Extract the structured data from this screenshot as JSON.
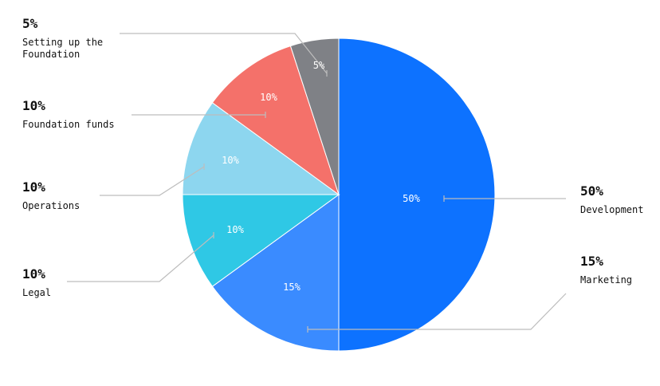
{
  "chart_data": {
    "type": "pie",
    "start_angle_deg": 0,
    "direction": "clockwise",
    "slices": [
      {
        "key": "development",
        "label": "Development",
        "value": 50,
        "value_text": "50%",
        "color": "#0d72ff"
      },
      {
        "key": "marketing",
        "label": "Marketing",
        "value": 15,
        "value_text": "15%",
        "color": "#3a8bff"
      },
      {
        "key": "legal",
        "label": "Legal",
        "value": 10,
        "value_text": "10%",
        "color": "#2fc8e5"
      },
      {
        "key": "operations",
        "label": "Operations",
        "value": 10,
        "value_text": "10%",
        "color": "#8dd6ef"
      },
      {
        "key": "foundation-funds",
        "label": "Foundation funds",
        "value": 10,
        "value_text": "10%",
        "color": "#f4716a"
      },
      {
        "key": "setting-up",
        "label": "Setting up the Foundation",
        "label_lines": [
          "Setting up the",
          "Foundation"
        ],
        "value": 5,
        "value_text": "5%",
        "color": "#7f8186"
      }
    ]
  }
}
